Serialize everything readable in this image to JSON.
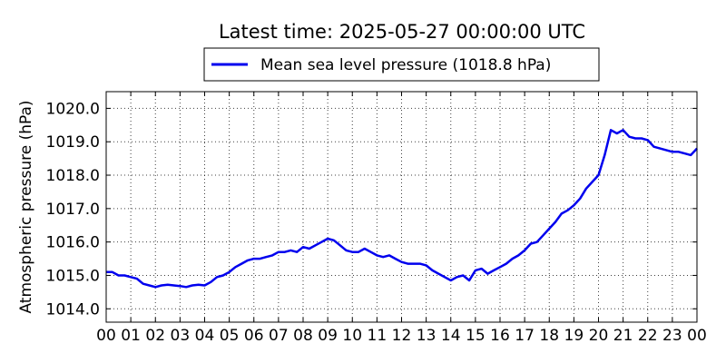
{
  "chart_data": {
    "type": "line",
    "title": "Latest time: 2025-05-27 00:00:00 UTC",
    "xlabel": "",
    "ylabel": "Atmospheric pressure (hPa)",
    "xlim": [
      0,
      24
    ],
    "ylim": [
      1013.6,
      1020.5
    ],
    "grid": true,
    "legend_position": "top-center",
    "x_tick_labels": [
      "00",
      "01",
      "02",
      "03",
      "04",
      "05",
      "06",
      "07",
      "08",
      "09",
      "10",
      "11",
      "12",
      "13",
      "14",
      "15",
      "16",
      "17",
      "18",
      "19",
      "20",
      "21",
      "22",
      "23",
      "00"
    ],
    "y_ticks": [
      1014.0,
      1015.0,
      1016.0,
      1017.0,
      1018.0,
      1019.0,
      1020.0
    ],
    "y_tick_labels": [
      "1014.0",
      "1015.0",
      "1016.0",
      "1017.0",
      "1018.0",
      "1019.0",
      "1020.0"
    ],
    "series": [
      {
        "name": "Mean sea level pressure (1018.8 hPa)",
        "color": "#0000ee",
        "x": [
          0,
          0.25,
          0.5,
          0.75,
          1.0,
          1.25,
          1.5,
          1.75,
          2.0,
          2.25,
          2.5,
          2.75,
          3.0,
          3.25,
          3.5,
          3.75,
          4.0,
          4.25,
          4.5,
          4.75,
          5.0,
          5.25,
          5.5,
          5.75,
          6.0,
          6.25,
          6.5,
          6.75,
          7.0,
          7.25,
          7.5,
          7.75,
          8.0,
          8.25,
          8.5,
          8.75,
          9.0,
          9.25,
          9.5,
          9.75,
          10.0,
          10.25,
          10.5,
          10.75,
          11.0,
          11.25,
          11.5,
          11.75,
          12.0,
          12.25,
          12.5,
          12.75,
          13.0,
          13.25,
          13.5,
          13.75,
          14.0,
          14.25,
          14.5,
          14.75,
          15.0,
          15.25,
          15.5,
          15.75,
          16.0,
          16.25,
          16.5,
          16.75,
          17.0,
          17.25,
          17.5,
          17.75,
          18.0,
          18.25,
          18.5,
          18.75,
          19.0,
          19.25,
          19.5,
          19.75,
          20.0,
          20.25,
          20.5,
          20.75,
          21.0,
          21.25,
          21.5,
          21.75,
          22.0,
          22.25,
          22.5,
          22.75,
          23.0,
          23.25,
          23.5,
          23.75,
          24.0
        ],
        "y": [
          1015.1,
          1015.1,
          1015.0,
          1015.0,
          1014.95,
          1014.9,
          1014.75,
          1014.7,
          1014.65,
          1014.7,
          1014.72,
          1014.7,
          1014.68,
          1014.65,
          1014.7,
          1014.72,
          1014.7,
          1014.8,
          1014.95,
          1015.0,
          1015.1,
          1015.25,
          1015.35,
          1015.45,
          1015.5,
          1015.5,
          1015.55,
          1015.6,
          1015.7,
          1015.7,
          1015.75,
          1015.7,
          1015.85,
          1015.8,
          1015.9,
          1016.0,
          1016.1,
          1016.05,
          1015.9,
          1015.75,
          1015.7,
          1015.7,
          1015.8,
          1015.7,
          1015.6,
          1015.55,
          1015.6,
          1015.5,
          1015.4,
          1015.35,
          1015.35,
          1015.35,
          1015.3,
          1015.15,
          1015.05,
          1014.95,
          1014.85,
          1014.95,
          1015.0,
          1014.85,
          1015.15,
          1015.2,
          1015.05,
          1015.15,
          1015.25,
          1015.35,
          1015.5,
          1015.6,
          1015.75,
          1015.95,
          1016.0,
          1016.2,
          1016.4,
          1016.6,
          1016.85,
          1016.95,
          1017.1,
          1017.3,
          1017.6,
          1017.8,
          1018.0,
          1018.6,
          1019.35,
          1019.25,
          1019.35,
          1019.15,
          1019.1,
          1019.1,
          1019.05,
          1018.85,
          1018.8,
          1018.75,
          1018.7,
          1018.7,
          1018.65,
          1018.6,
          1018.8
        ]
      }
    ]
  }
}
